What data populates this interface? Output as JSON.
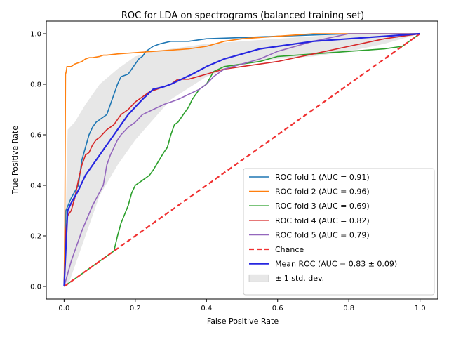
{
  "chart_data": {
    "type": "line",
    "title": "ROC for LDA on spectrograms (balanced training set)",
    "xlabel": "False Positive Rate",
    "ylabel": "True Positive Rate",
    "xlim": [
      -0.05,
      1.05
    ],
    "ylim": [
      -0.05,
      1.05
    ],
    "xticks": [
      "0.0",
      "0.2",
      "0.4",
      "0.6",
      "0.8",
      "1.0"
    ],
    "yticks": [
      "0.0",
      "0.2",
      "0.4",
      "0.6",
      "0.8",
      "1.0"
    ],
    "grid": false,
    "legend_position": "lower-right",
    "band": {
      "name": "± 1 std. dev.",
      "color": "#bbbbbb",
      "x": [
        0,
        0.01,
        0.03,
        0.06,
        0.1,
        0.15,
        0.2,
        0.25,
        0.3,
        0.4,
        0.5,
        0.6,
        0.7,
        0.8,
        0.9,
        1.0
      ],
      "upper": [
        0,
        0.62,
        0.65,
        0.72,
        0.8,
        0.86,
        0.91,
        0.93,
        0.94,
        0.96,
        0.97,
        0.98,
        0.99,
        1.0,
        1.0,
        1.0
      ],
      "lower": [
        0,
        0.0,
        0.08,
        0.2,
        0.36,
        0.48,
        0.58,
        0.66,
        0.74,
        0.83,
        0.88,
        0.9,
        0.91,
        0.93,
        0.96,
        1.0
      ]
    },
    "series": [
      {
        "name": "ROC fold 1 (AUC = 0.91)",
        "color": "#1f77b4",
        "width": 1.6,
        "dash": "",
        "x": [
          0,
          0.005,
          0.02,
          0.04,
          0.05,
          0.06,
          0.07,
          0.08,
          0.09,
          0.1,
          0.12,
          0.13,
          0.14,
          0.15,
          0.16,
          0.18,
          0.19,
          0.2,
          0.21,
          0.22,
          0.23,
          0.24,
          0.25,
          0.27,
          0.3,
          0.35,
          0.4,
          0.5,
          0.6,
          0.7,
          0.8,
          0.9,
          1.0
        ],
        "y": [
          0,
          0.3,
          0.35,
          0.4,
          0.5,
          0.55,
          0.6,
          0.63,
          0.65,
          0.66,
          0.68,
          0.72,
          0.76,
          0.8,
          0.83,
          0.84,
          0.86,
          0.88,
          0.9,
          0.91,
          0.93,
          0.94,
          0.95,
          0.96,
          0.97,
          0.97,
          0.98,
          0.985,
          0.99,
          0.995,
          1.0,
          1.0,
          1.0
        ]
      },
      {
        "name": "ROC fold 2 (AUC = 0.96)",
        "color": "#ff7f0e",
        "width": 1.6,
        "dash": "",
        "x": [
          0,
          0.002,
          0.004,
          0.006,
          0.008,
          0.02,
          0.03,
          0.05,
          0.06,
          0.07,
          0.08,
          0.1,
          0.11,
          0.12,
          0.15,
          0.2,
          0.25,
          0.3,
          0.35,
          0.4,
          0.45,
          0.5,
          0.6,
          0.7,
          0.8,
          1.0
        ],
        "y": [
          0,
          0.25,
          0.84,
          0.85,
          0.87,
          0.87,
          0.88,
          0.89,
          0.9,
          0.905,
          0.905,
          0.91,
          0.915,
          0.915,
          0.92,
          0.925,
          0.93,
          0.935,
          0.94,
          0.95,
          0.97,
          0.98,
          0.99,
          1.0,
          1.0,
          1.0
        ]
      },
      {
        "name": "ROC fold 3 (AUC = 0.69)",
        "color": "#2ca02c",
        "width": 1.6,
        "dash": "",
        "x": [
          0,
          0.14,
          0.15,
          0.16,
          0.18,
          0.19,
          0.2,
          0.22,
          0.24,
          0.25,
          0.28,
          0.29,
          0.3,
          0.31,
          0.32,
          0.34,
          0.35,
          0.36,
          0.38,
          0.4,
          0.42,
          0.45,
          0.5,
          0.55,
          0.6,
          0.7,
          0.8,
          0.9,
          0.95,
          1.0
        ],
        "y": [
          0,
          0.14,
          0.2,
          0.25,
          0.32,
          0.37,
          0.4,
          0.42,
          0.44,
          0.46,
          0.53,
          0.55,
          0.6,
          0.64,
          0.65,
          0.69,
          0.71,
          0.74,
          0.78,
          0.8,
          0.85,
          0.87,
          0.88,
          0.89,
          0.91,
          0.92,
          0.93,
          0.94,
          0.95,
          1.0
        ]
      },
      {
        "name": "ROC fold 4 (AUC = 0.82)",
        "color": "#d62728",
        "width": 1.6,
        "dash": "",
        "x": [
          0,
          0.005,
          0.01,
          0.02,
          0.03,
          0.04,
          0.05,
          0.06,
          0.07,
          0.08,
          0.09,
          0.1,
          0.12,
          0.14,
          0.16,
          0.18,
          0.2,
          0.22,
          0.24,
          0.26,
          0.28,
          0.3,
          0.32,
          0.35,
          0.4,
          0.45,
          0.5,
          0.6,
          0.7,
          0.8,
          0.9,
          1.0
        ],
        "y": [
          0,
          0.22,
          0.28,
          0.3,
          0.35,
          0.42,
          0.48,
          0.52,
          0.53,
          0.56,
          0.58,
          0.59,
          0.62,
          0.64,
          0.68,
          0.7,
          0.73,
          0.75,
          0.77,
          0.78,
          0.79,
          0.8,
          0.82,
          0.82,
          0.84,
          0.86,
          0.87,
          0.89,
          0.92,
          0.95,
          0.98,
          1.0
        ]
      },
      {
        "name": "ROC fold 5 (AUC = 0.79)",
        "color": "#9467bd",
        "width": 1.6,
        "dash": "",
        "x": [
          0,
          0.02,
          0.05,
          0.08,
          0.11,
          0.12,
          0.13,
          0.14,
          0.15,
          0.16,
          0.18,
          0.2,
          0.22,
          0.25,
          0.28,
          0.3,
          0.32,
          0.35,
          0.38,
          0.4,
          0.42,
          0.45,
          0.5,
          0.55,
          0.6,
          0.7,
          0.8,
          0.9,
          1.0
        ],
        "y": [
          0,
          0.1,
          0.22,
          0.32,
          0.4,
          0.48,
          0.52,
          0.55,
          0.58,
          0.6,
          0.63,
          0.65,
          0.68,
          0.7,
          0.72,
          0.73,
          0.74,
          0.76,
          0.78,
          0.8,
          0.83,
          0.86,
          0.88,
          0.9,
          0.93,
          0.97,
          1.0,
          1.0,
          1.0
        ]
      },
      {
        "name": "Chance",
        "color": "#f03030",
        "width": 2.2,
        "dash": "7,4",
        "x": [
          0,
          1
        ],
        "y": [
          0,
          1
        ]
      },
      {
        "name": "Mean ROC (AUC = 0.83 ± 0.09)",
        "color": "#2626e0",
        "width": 2.2,
        "dash": "",
        "x": [
          0,
          0.01,
          0.02,
          0.04,
          0.06,
          0.08,
          0.1,
          0.12,
          0.14,
          0.16,
          0.18,
          0.2,
          0.22,
          0.25,
          0.28,
          0.3,
          0.33,
          0.36,
          0.4,
          0.45,
          0.5,
          0.55,
          0.6,
          0.7,
          0.8,
          0.9,
          1.0
        ],
        "y": [
          0,
          0.3,
          0.33,
          0.38,
          0.44,
          0.48,
          0.52,
          0.56,
          0.6,
          0.64,
          0.68,
          0.71,
          0.74,
          0.78,
          0.79,
          0.8,
          0.82,
          0.84,
          0.87,
          0.9,
          0.92,
          0.94,
          0.95,
          0.97,
          0.98,
          0.99,
          1.0
        ]
      }
    ]
  }
}
